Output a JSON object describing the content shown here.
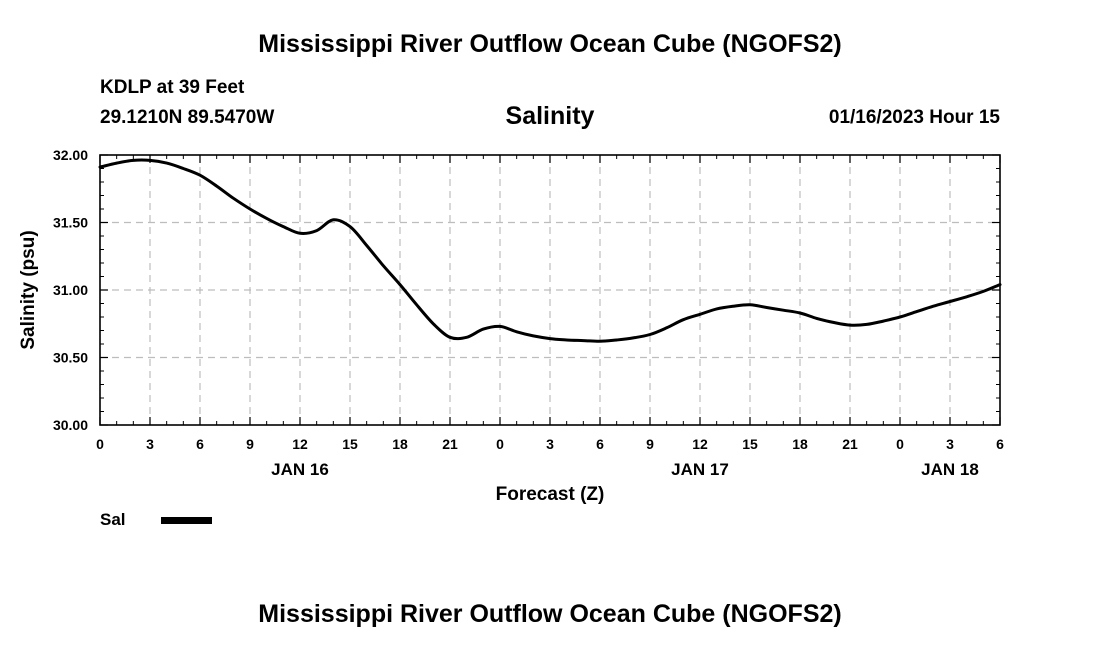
{
  "page": {
    "title": "Mississippi River Outflow Ocean Cube (NGOFS2)",
    "footer_title": "Mississippi River Outflow Ocean Cube (NGOFS2)",
    "station": "KDLP at 39 Feet",
    "coords": "29.1210N  89.5470W",
    "timestamp": "01/16/2023 Hour 15"
  },
  "legend": {
    "label": "Sal",
    "color": "#000000"
  },
  "chart_data": {
    "type": "line",
    "title": "Salinity",
    "xlabel": "Forecast (Z)",
    "ylabel": "Salinity (psu)",
    "xlim": [
      0,
      54
    ],
    "ylim": [
      30.0,
      32.0
    ],
    "grid": true,
    "x_ticks": [
      0,
      3,
      6,
      9,
      12,
      15,
      18,
      21,
      24,
      27,
      30,
      33,
      36,
      39,
      42,
      45,
      48,
      51,
      54
    ],
    "x_tick_labels": [
      "0",
      "3",
      "6",
      "9",
      "12",
      "15",
      "18",
      "21",
      "0",
      "3",
      "6",
      "9",
      "12",
      "15",
      "18",
      "21",
      "0",
      "3",
      "6"
    ],
    "y_ticks": [
      30.0,
      30.5,
      31.0,
      31.5,
      32.0
    ],
    "y_tick_labels": [
      "30.00",
      "30.50",
      "31.00",
      "31.50",
      "32.00"
    ],
    "date_labels": [
      {
        "x": 12,
        "label": "JAN 16"
      },
      {
        "x": 36,
        "label": "JAN 17"
      },
      {
        "x": 51,
        "label": "JAN 18"
      }
    ],
    "series": [
      {
        "name": "Sal",
        "color": "#000000",
        "x": [
          0,
          1,
          2,
          3,
          4,
          5,
          6,
          7,
          8,
          9,
          10,
          11,
          12,
          13,
          14,
          15,
          16,
          17,
          18,
          19,
          20,
          21,
          22,
          23,
          24,
          25,
          26,
          27,
          28,
          29,
          30,
          31,
          32,
          33,
          34,
          35,
          36,
          37,
          38,
          39,
          40,
          41,
          42,
          43,
          44,
          45,
          46,
          47,
          48,
          49,
          50,
          51,
          52,
          53,
          54
        ],
        "values": [
          31.91,
          31.94,
          31.96,
          31.96,
          31.94,
          31.9,
          31.85,
          31.77,
          31.68,
          31.6,
          31.53,
          31.47,
          31.42,
          31.44,
          31.52,
          31.47,
          31.33,
          31.18,
          31.04,
          30.89,
          30.75,
          30.65,
          30.65,
          30.71,
          30.73,
          30.69,
          30.66,
          30.64,
          30.63,
          30.625,
          30.62,
          30.63,
          30.645,
          30.67,
          30.72,
          30.78,
          30.82,
          30.86,
          30.88,
          30.89,
          30.87,
          30.85,
          30.83,
          30.79,
          30.76,
          30.74,
          30.745,
          30.77,
          30.8,
          30.84,
          30.88,
          30.915,
          30.95,
          30.99,
          31.04
        ]
      }
    ]
  }
}
